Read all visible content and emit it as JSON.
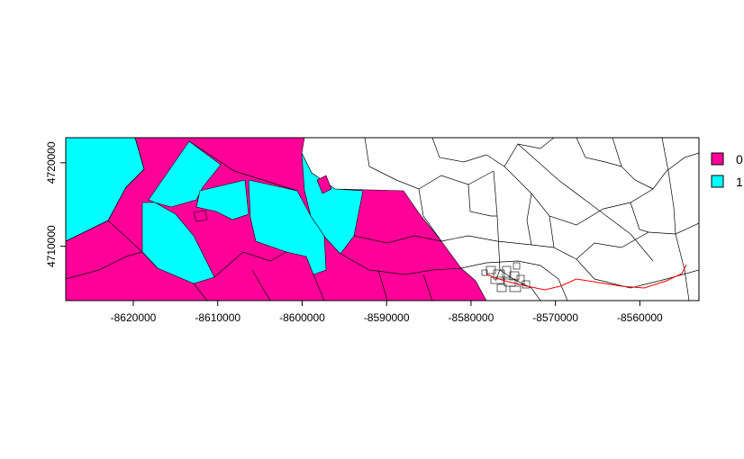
{
  "chart_data": {
    "type": "map",
    "title": "",
    "xlabel": "",
    "ylabel": "",
    "x_ticks": [
      -8620000,
      -8610000,
      -8600000,
      -8590000,
      -8580000,
      -8570000,
      -8560000
    ],
    "x_tick_labels": [
      "-8620000",
      "-8610000",
      "-8600000",
      "-8590000",
      "-8580000",
      "-8570000",
      "-8560000"
    ],
    "y_ticks": [
      4710000,
      4720000
    ],
    "y_tick_labels": [
      "4710000",
      "4720000"
    ],
    "xlim": [
      -8628000,
      -8553000
    ],
    "ylim": [
      4703500,
      4723000
    ],
    "grid": false,
    "legend_position": "right",
    "legend": [
      {
        "label": "0",
        "color": "#FF0099"
      },
      {
        "label": "1",
        "color": "#00FFFF"
      }
    ],
    "unclassified_color": "#FFFFFF",
    "line_feature_color": "#FF0000"
  }
}
